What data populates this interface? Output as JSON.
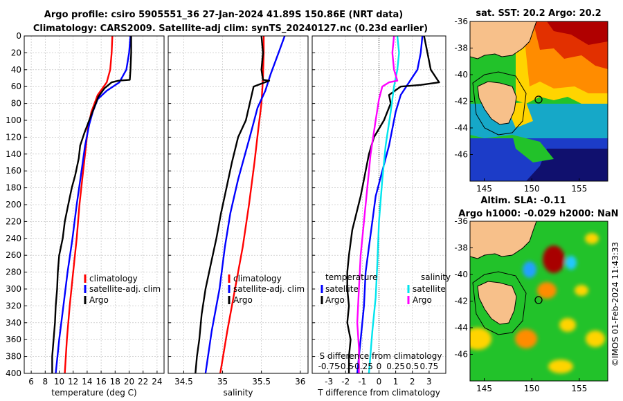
{
  "title_line1": "Argo profile: csiro 5905551_36 27-Jan-2024 41.89S 150.86E (NRT data)",
  "title_line2": "Climatology: CARS2009. Satellite-adj clim: synTS_20240127.nc (0.23d earlier)",
  "colors": {
    "climatology": "#ff0000",
    "satellite": "#0000ff",
    "argo": "#000000",
    "sat_salinity": "#00e5ee",
    "argo_salinity": "#ff00ff"
  },
  "chart_data": [
    {
      "type": "line",
      "name": "temperature",
      "xlabel": "temperature (deg C)",
      "xlim": [
        5,
        25
      ],
      "xticks": [
        6,
        8,
        10,
        12,
        14,
        16,
        18,
        20,
        22,
        24
      ],
      "ylim": [
        400,
        0
      ],
      "yticks": [
        0,
        20,
        40,
        60,
        80,
        100,
        120,
        140,
        160,
        180,
        200,
        220,
        240,
        260,
        280,
        300,
        320,
        340,
        360,
        380,
        400
      ],
      "legend": [
        "climatology",
        "satellite-adj. clim",
        "Argo"
      ],
      "series": [
        {
          "name": "climatology",
          "color": "#ff0000",
          "points": [
            [
              17.6,
              0
            ],
            [
              17.5,
              20
            ],
            [
              17.3,
              40
            ],
            [
              16.8,
              55
            ],
            [
              15.5,
              70
            ],
            [
              14.6,
              90
            ],
            [
              14.1,
              110
            ],
            [
              13.7,
              140
            ],
            [
              13.3,
              170
            ],
            [
              12.9,
              200
            ],
            [
              12.5,
              240
            ],
            [
              12.0,
              280
            ],
            [
              11.5,
              320
            ],
            [
              11.1,
              360
            ],
            [
              10.8,
              400
            ]
          ]
        },
        {
          "name": "satellite-adj. clim",
          "color": "#0000ff",
          "points": [
            [
              20.2,
              0
            ],
            [
              20.0,
              20
            ],
            [
              19.6,
              40
            ],
            [
              18.6,
              55
            ],
            [
              16.8,
              65
            ],
            [
              15.5,
              75
            ],
            [
              14.8,
              90
            ],
            [
              14.3,
              105
            ],
            [
              13.7,
              130
            ],
            [
              13.2,
              160
            ],
            [
              12.5,
              200
            ],
            [
              11.9,
              240
            ],
            [
              11.2,
              280
            ],
            [
              10.6,
              320
            ],
            [
              10.0,
              360
            ],
            [
              9.5,
              400
            ]
          ]
        },
        {
          "name": "Argo",
          "color": "#000000",
          "points": [
            [
              20.3,
              0
            ],
            [
              20.3,
              20
            ],
            [
              20.2,
              40
            ],
            [
              20.1,
              52
            ],
            [
              18.5,
              53
            ],
            [
              17.5,
              55
            ],
            [
              16.5,
              62
            ],
            [
              15.6,
              72
            ],
            [
              15.0,
              85
            ],
            [
              14.3,
              100
            ],
            [
              13.6,
              115
            ],
            [
              13.0,
              130
            ],
            [
              12.8,
              145
            ],
            [
              12.3,
              165
            ],
            [
              11.8,
              180
            ],
            [
              11.3,
              200
            ],
            [
              10.8,
              220
            ],
            [
              10.5,
              240
            ],
            [
              10.0,
              260
            ],
            [
              9.8,
              280
            ],
            [
              9.7,
              300
            ],
            [
              9.5,
              320
            ],
            [
              9.4,
              340
            ],
            [
              9.2,
              360
            ],
            [
              9.0,
              380
            ],
            [
              9.0,
              400
            ]
          ]
        }
      ]
    },
    {
      "type": "line",
      "name": "salinity",
      "xlabel": "salinity",
      "xlim": [
        34.3,
        36.1
      ],
      "xticks": [
        34.5,
        35,
        35.5,
        36
      ],
      "ylim": [
        400,
        0
      ],
      "legend": [
        "climatology",
        "satellite-adj. clim",
        "Argo"
      ],
      "series": [
        {
          "name": "climatology",
          "color": "#ff0000",
          "points": [
            [
              35.53,
              0
            ],
            [
              35.53,
              20
            ],
            [
              35.52,
              50
            ],
            [
              35.5,
              80
            ],
            [
              35.46,
              110
            ],
            [
              35.41,
              150
            ],
            [
              35.34,
              200
            ],
            [
              35.26,
              250
            ],
            [
              35.16,
              300
            ],
            [
              35.06,
              350
            ],
            [
              34.97,
              400
            ]
          ]
        },
        {
          "name": "satellite-adj. clim",
          "color": "#0000ff",
          "points": [
            [
              35.8,
              0
            ],
            [
              35.72,
              20
            ],
            [
              35.62,
              45
            ],
            [
              35.55,
              65
            ],
            [
              35.45,
              85
            ],
            [
              35.35,
              120
            ],
            [
              35.2,
              170
            ],
            [
              35.1,
              210
            ],
            [
              35.03,
              250
            ],
            [
              34.96,
              300
            ],
            [
              34.86,
              350
            ],
            [
              34.78,
              400
            ]
          ]
        },
        {
          "name": "Argo",
          "color": "#000000",
          "points": [
            [
              35.5,
              0
            ],
            [
              35.52,
              20
            ],
            [
              35.5,
              40
            ],
            [
              35.52,
              52
            ],
            [
              35.6,
              53
            ],
            [
              35.4,
              60
            ],
            [
              35.35,
              80
            ],
            [
              35.3,
              100
            ],
            [
              35.2,
              120
            ],
            [
              35.12,
              150
            ],
            [
              35.05,
              180
            ],
            [
              34.98,
              210
            ],
            [
              34.92,
              240
            ],
            [
              34.85,
              270
            ],
            [
              34.78,
              300
            ],
            [
              34.73,
              330
            ],
            [
              34.7,
              360
            ],
            [
              34.67,
              380
            ],
            [
              34.65,
              400
            ]
          ]
        }
      ]
    },
    {
      "type": "line",
      "name": "difference",
      "xlabel": "T difference from climatology",
      "xlim": [
        -4,
        4
      ],
      "xticks": [
        -3,
        -2,
        -1,
        0,
        1,
        2,
        3
      ],
      "top_label": "S difference from climatology",
      "top_ticks": [
        "-0.75",
        "-0.5",
        "-0.25",
        "0",
        "0.25",
        "0.5",
        "0.75"
      ],
      "ylim": [
        400,
        0
      ],
      "legend_temperature": {
        "title": "temperature",
        "items": [
          "satellite",
          "Argo"
        ]
      },
      "legend_salinity": {
        "title": "salinity",
        "items": [
          "satellite",
          "Argo"
        ]
      },
      "series": [
        {
          "name": "T satellite",
          "color": "#0000ff",
          "points": [
            [
              2.6,
              0
            ],
            [
              2.5,
              20
            ],
            [
              2.3,
              40
            ],
            [
              1.8,
              55
            ],
            [
              1.3,
              70
            ],
            [
              1.0,
              90
            ],
            [
              0.8,
              110
            ],
            [
              0.6,
              130
            ],
            [
              0.2,
              160
            ],
            [
              -0.2,
              190
            ],
            [
              -0.4,
              220
            ],
            [
              -0.6,
              250
            ],
            [
              -0.8,
              280
            ],
            [
              -0.9,
              320
            ],
            [
              -1.1,
              360
            ],
            [
              -1.3,
              400
            ]
          ]
        },
        {
          "name": "T Argo",
          "color": "#000000",
          "points": [
            [
              2.7,
              0
            ],
            [
              2.9,
              20
            ],
            [
              3.1,
              40
            ],
            [
              3.6,
              55
            ],
            [
              2.5,
              58
            ],
            [
              1.3,
              60
            ],
            [
              0.6,
              70
            ],
            [
              0.7,
              80
            ],
            [
              0.3,
              100
            ],
            [
              -0.3,
              120
            ],
            [
              -0.6,
              140
            ],
            [
              -0.8,
              160
            ],
            [
              -1.1,
              190
            ],
            [
              -1.6,
              230
            ],
            [
              -1.8,
              260
            ],
            [
              -1.9,
              280
            ],
            [
              -1.9,
              300
            ],
            [
              -1.8,
              320
            ],
            [
              -1.9,
              340
            ],
            [
              -1.7,
              360
            ],
            [
              -1.8,
              380
            ],
            [
              -1.8,
              400
            ]
          ]
        },
        {
          "name": "S satellite",
          "color": "#00e5ee",
          "points": [
            [
              1.1,
              0
            ],
            [
              1.2,
              20
            ],
            [
              1.1,
              40
            ],
            [
              0.9,
              60
            ],
            [
              0.7,
              90
            ],
            [
              0.4,
              130
            ],
            [
              0.2,
              170
            ],
            [
              0.0,
              220
            ],
            [
              -0.1,
              270
            ],
            [
              -0.2,
              310
            ],
            [
              -0.4,
              350
            ],
            [
              -0.6,
              400
            ]
          ]
        },
        {
          "name": "S Argo",
          "color": "#ff00ff",
          "points": [
            [
              0.9,
              0
            ],
            [
              0.8,
              20
            ],
            [
              0.9,
              40
            ],
            [
              1.1,
              53
            ],
            [
              0.6,
              55
            ],
            [
              0.2,
              60
            ],
            [
              0.0,
              75
            ],
            [
              -0.2,
              100
            ],
            [
              -0.5,
              140
            ],
            [
              -0.7,
              180
            ],
            [
              -0.9,
              220
            ],
            [
              -1.1,
              260
            ],
            [
              -1.2,
              300
            ],
            [
              -1.3,
              340
            ],
            [
              -1.2,
              370
            ],
            [
              -1.2,
              400
            ]
          ]
        }
      ]
    },
    {
      "type": "heatmap",
      "name": "sat_sst_map",
      "title": "sat. SST: 20.2 Argo: 20.2",
      "xlim": [
        143.5,
        158
      ],
      "ylim": [
        -48,
        -36
      ],
      "xticks": [
        145,
        150,
        155
      ],
      "yticks": [
        -36,
        -38,
        -40,
        -42,
        -44,
        -46
      ]
    },
    {
      "type": "heatmap",
      "name": "altimetry_map",
      "title1": "Altim. SLA: -0.11",
      "title2": "Argo h1000: -0.029 h2000: NaN",
      "xlim": [
        143.5,
        158
      ],
      "ylim": [
        -48,
        -36
      ],
      "xticks": [
        145,
        150,
        155
      ],
      "yticks": [
        -36,
        -38,
        -40,
        -42,
        -44,
        -46
      ]
    }
  ],
  "watermark": "©IMOS 01-Feb-2024 11:43:33"
}
